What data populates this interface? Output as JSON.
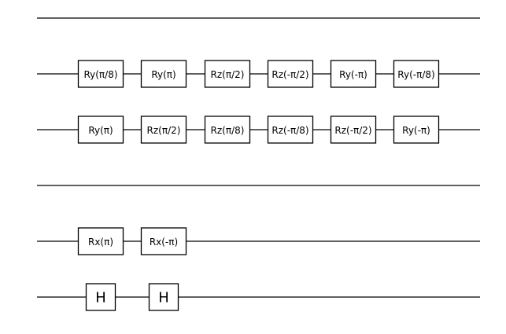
{
  "circuit": {
    "wires": [
      {
        "role": "separator",
        "gates": []
      },
      {
        "role": "qubit",
        "gates": [
          "Ry(π/8)",
          "Ry(π)",
          "Rz(π/2)",
          "Rz(-π/2)",
          "Ry(-π)",
          "Ry(-π/8)"
        ]
      },
      {
        "role": "qubit",
        "gates": [
          "Ry(π)",
          "Rz(π/2)",
          "Rz(π/8)",
          "Rz(-π/8)",
          "Rz(-π/2)",
          "Ry(-π)"
        ]
      },
      {
        "role": "separator",
        "gates": []
      },
      {
        "role": "qubit",
        "gates": [
          "Rx(π)",
          "Rx(-π)"
        ]
      },
      {
        "role": "qubit",
        "gates": [
          "H",
          "H"
        ]
      }
    ]
  }
}
